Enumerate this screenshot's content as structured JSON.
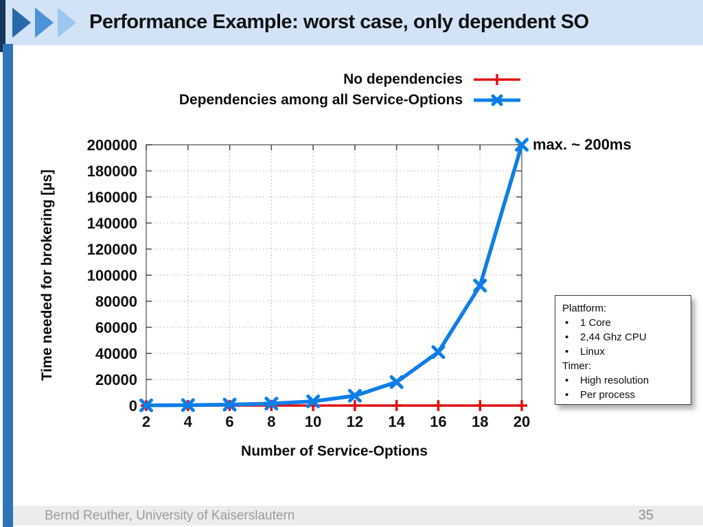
{
  "header": {
    "title": "Performance Example: worst case, only dependent SO",
    "band_color": "#d2e3f7",
    "accent_bar_color": "#17375d",
    "stripe_color": "#2e74b5",
    "chevron_colors": [
      "#2a69a9",
      "#4f93d6",
      "#9dc7ee"
    ]
  },
  "chart_data": {
    "type": "line",
    "title": "",
    "xlabel": "Number of Service-Options",
    "ylabel": "Time needed for brokering [µs]",
    "x": [
      2,
      4,
      6,
      8,
      10,
      12,
      14,
      16,
      18,
      20
    ],
    "xlim": [
      2,
      20
    ],
    "ylim": [
      0,
      200000
    ],
    "ytick_step": 20000,
    "xtick_labels": [
      "2",
      "4",
      "6",
      "8",
      "10",
      "12",
      "14",
      "16",
      "18",
      "20"
    ],
    "ytick_labels": [
      "0",
      "20000",
      "40000",
      "60000",
      "80000",
      "100000",
      "120000",
      "140000",
      "160000",
      "180000",
      "200000"
    ],
    "grid": true,
    "legend_position": "top-right-outside",
    "series": [
      {
        "name": "No dependencies",
        "color": "#e01212",
        "marker": "plus",
        "values": [
          0,
          0,
          0,
          0,
          0,
          0,
          0,
          0,
          0,
          0
        ]
      },
      {
        "name": "Dependencies among all Service-Options",
        "color": "#0e7ee6",
        "marker": "cross",
        "values": [
          150,
          350,
          700,
          1500,
          3200,
          7500,
          18000,
          41000,
          92000,
          200000
        ]
      }
    ],
    "annotation": "max. ~ 200ms"
  },
  "note_box": {
    "lines": [
      {
        "bullet": false,
        "text": "Plattform:"
      },
      {
        "bullet": true,
        "text": "1 Core"
      },
      {
        "bullet": true,
        "text": "2,44 Ghz CPU"
      },
      {
        "bullet": true,
        "text": "Linux"
      },
      {
        "bullet": false,
        "text": "Timer:"
      },
      {
        "bullet": true,
        "text": "High resolution"
      },
      {
        "bullet": true,
        "text": "Per process"
      }
    ]
  },
  "footer": {
    "author": "Bernd Reuther, University of Kaiserslautern",
    "page": "35"
  }
}
